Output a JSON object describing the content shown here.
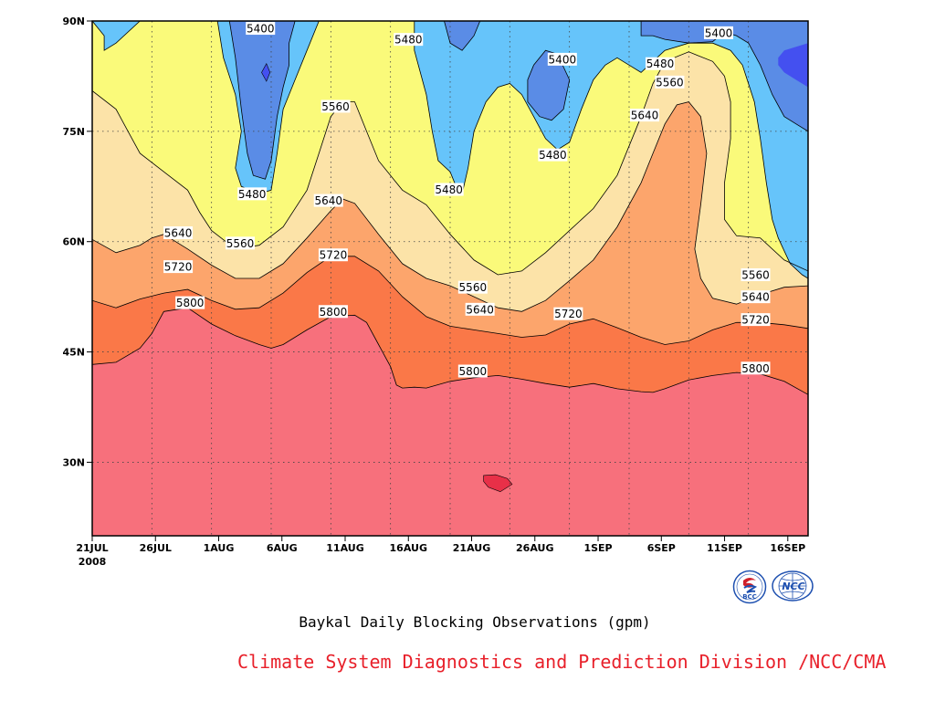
{
  "chart_data": {
    "type": "contour",
    "title": "Baykal Daily Blocking Observations (gpm)",
    "x_axis": {
      "ticks": [
        "21JUL",
        "26JUL",
        "1AUG",
        "6AUG",
        "11AUG",
        "16AUG",
        "21AUG",
        "26AUG",
        "1SEP",
        "6SEP",
        "11SEP",
        "16SEP"
      ],
      "year_label": "2008",
      "range_days": [
        0,
        60
      ]
    },
    "y_axis": {
      "ticks": [
        "30N",
        "45N",
        "60N",
        "75N",
        "90N"
      ],
      "range": [
        20,
        90
      ]
    },
    "grid": true,
    "levels": [
      5400,
      5480,
      5560,
      5640,
      5720,
      5800
    ],
    "fill_colors": {
      "below_5400": "#5a8ce6",
      "b5400_5480": "#66c4fa",
      "b5480_5560": "#fafa7a",
      "b5560_5640": "#fce3a8",
      "b5640_5720": "#fca56c",
      "b5720_5800": "#fa7848",
      "above_5800": "#f7707c",
      "extreme_low": "#4450f0",
      "extreme_high": "#e83048"
    },
    "contours": [
      {
        "level": 5800,
        "points": [
          [
            0,
            43.3
          ],
          [
            2,
            43.6
          ],
          [
            4,
            45.5
          ],
          [
            5,
            47.5
          ],
          [
            6,
            50.5
          ],
          [
            8,
            51
          ],
          [
            10,
            48.8
          ],
          [
            12,
            47.2
          ],
          [
            14,
            46
          ],
          [
            15,
            45.5
          ],
          [
            16,
            46
          ],
          [
            18,
            48
          ],
          [
            20,
            49.8
          ],
          [
            22,
            50
          ],
          [
            23,
            49
          ],
          [
            24,
            46
          ],
          [
            25,
            43
          ],
          [
            25.5,
            40.5
          ],
          [
            26,
            40.1
          ],
          [
            27,
            40.2
          ],
          [
            28,
            40.1
          ],
          [
            30,
            41
          ],
          [
            32,
            41.5
          ],
          [
            34,
            41.8
          ],
          [
            36,
            41.3
          ],
          [
            38,
            40.7
          ],
          [
            40,
            40.2
          ],
          [
            42,
            40.7
          ],
          [
            44,
            40
          ],
          [
            46,
            39.6
          ],
          [
            47,
            39.5
          ],
          [
            48,
            40
          ],
          [
            50,
            41.2
          ],
          [
            52,
            41.8
          ],
          [
            54,
            42.2
          ],
          [
            56,
            42
          ],
          [
            58,
            41
          ],
          [
            60,
            39.2
          ]
        ]
      },
      {
        "level": 5720,
        "points": [
          [
            0,
            52
          ],
          [
            2,
            51
          ],
          [
            4,
            52.2
          ],
          [
            6,
            53
          ],
          [
            8,
            53.5
          ],
          [
            10,
            52
          ],
          [
            12,
            50.8
          ],
          [
            14,
            51
          ],
          [
            16,
            53
          ],
          [
            18,
            55.8
          ],
          [
            20,
            58
          ],
          [
            22,
            58
          ],
          [
            24,
            56
          ],
          [
            26,
            52.5
          ],
          [
            28,
            49.8
          ],
          [
            30,
            48.5
          ],
          [
            32,
            48
          ],
          [
            34,
            47.5
          ],
          [
            36,
            47
          ],
          [
            38,
            47.3
          ],
          [
            40,
            48.8
          ],
          [
            42,
            49.5
          ],
          [
            44,
            48.3
          ],
          [
            46,
            47
          ],
          [
            48,
            46
          ],
          [
            50,
            46.5
          ],
          [
            52,
            48
          ],
          [
            54,
            49
          ],
          [
            56,
            49
          ],
          [
            58,
            48.7
          ],
          [
            60,
            48.2
          ]
        ]
      },
      {
        "level": 5640,
        "points": [
          [
            0,
            60.3
          ],
          [
            2,
            58.5
          ],
          [
            4,
            59.5
          ],
          [
            5,
            60.5
          ],
          [
            6,
            61
          ],
          [
            8,
            59
          ],
          [
            10,
            56.8
          ],
          [
            12,
            55
          ],
          [
            14,
            55
          ],
          [
            16,
            57
          ],
          [
            18,
            60.5
          ],
          [
            20,
            64.2
          ],
          [
            21,
            65.8
          ],
          [
            22,
            65.2
          ],
          [
            24,
            61
          ],
          [
            26,
            57
          ],
          [
            28,
            55
          ],
          [
            30,
            54
          ],
          [
            32,
            52.5
          ],
          [
            34,
            51
          ],
          [
            36,
            50.5
          ],
          [
            38,
            52
          ],
          [
            40,
            54.7
          ],
          [
            42,
            57.5
          ],
          [
            44,
            62
          ],
          [
            46,
            68
          ],
          [
            47,
            72
          ],
          [
            48,
            76
          ],
          [
            49,
            78.6
          ],
          [
            50,
            79
          ],
          [
            51,
            77
          ],
          [
            51.5,
            72
          ],
          [
            51,
            65
          ],
          [
            50.5,
            59
          ],
          [
            51,
            55
          ],
          [
            52,
            52.3
          ],
          [
            54,
            51.5
          ],
          [
            56,
            52.8
          ],
          [
            58,
            53.8
          ],
          [
            60,
            54
          ]
        ]
      },
      {
        "level": 5560,
        "points": [
          [
            0,
            80.5
          ],
          [
            2,
            78
          ],
          [
            3,
            75
          ],
          [
            4,
            72
          ],
          [
            6,
            69.5
          ],
          [
            8,
            67
          ],
          [
            9,
            64
          ],
          [
            10,
            61.5
          ],
          [
            12,
            59
          ],
          [
            14,
            59.5
          ],
          [
            16,
            62
          ],
          [
            18,
            67
          ],
          [
            19,
            72
          ],
          [
            20,
            77
          ],
          [
            21,
            79
          ],
          [
            22,
            79
          ],
          [
            23,
            75
          ],
          [
            24,
            71
          ],
          [
            26,
            67
          ],
          [
            28,
            65
          ],
          [
            30,
            61
          ],
          [
            32,
            57.5
          ],
          [
            34,
            55.5
          ],
          [
            36,
            56
          ],
          [
            38,
            58.5
          ],
          [
            40,
            61.5
          ],
          [
            42,
            64.5
          ],
          [
            44,
            69
          ],
          [
            46,
            77
          ],
          [
            47,
            81.5
          ],
          [
            48,
            84.5
          ],
          [
            50,
            85.8
          ],
          [
            52,
            84.5
          ],
          [
            53,
            82.5
          ],
          [
            53.5,
            79
          ],
          [
            53.5,
            74
          ],
          [
            53,
            68
          ],
          [
            53,
            63
          ],
          [
            54,
            60.8
          ],
          [
            56,
            60.5
          ],
          [
            58,
            57.5
          ],
          [
            60,
            56
          ]
        ]
      },
      {
        "level": 5480,
        "points": [
          [
            0,
            90
          ],
          [
            1,
            88
          ],
          [
            1,
            86
          ],
          [
            2,
            87
          ],
          [
            4,
            90
          ]
        ]
      },
      {
        "level": 5480,
        "points": [
          [
            10.5,
            90
          ],
          [
            11,
            85
          ],
          [
            12,
            80
          ],
          [
            12.5,
            75
          ],
          [
            12,
            70
          ],
          [
            12.5,
            67.5
          ],
          [
            14,
            66.5
          ],
          [
            15,
            67
          ],
          [
            15.5,
            72
          ],
          [
            16,
            78
          ],
          [
            17,
            82
          ],
          [
            18,
            86
          ],
          [
            19,
            90
          ]
        ]
      },
      {
        "level": 5480,
        "points": [
          [
            27,
            90
          ],
          [
            27,
            86
          ],
          [
            28,
            80
          ],
          [
            28.5,
            75
          ],
          [
            29,
            71
          ],
          [
            30,
            69.5
          ],
          [
            30.5,
            67.5
          ],
          [
            31,
            66.5
          ],
          [
            31.5,
            70
          ],
          [
            32,
            75
          ],
          [
            33,
            79
          ],
          [
            34,
            81
          ],
          [
            35,
            81.5
          ],
          [
            36,
            80
          ],
          [
            37,
            77
          ],
          [
            38,
            74
          ],
          [
            39,
            72.5
          ],
          [
            40,
            73.5
          ],
          [
            41,
            78
          ],
          [
            42,
            82
          ],
          [
            43,
            84
          ],
          [
            44,
            85
          ],
          [
            45,
            84
          ],
          [
            46,
            83
          ],
          [
            47,
            84.5
          ],
          [
            48,
            86
          ],
          [
            50,
            87
          ],
          [
            52,
            87
          ],
          [
            53.5,
            86
          ],
          [
            54.5,
            84
          ],
          [
            55.5,
            79
          ],
          [
            56,
            74
          ],
          [
            56.5,
            68
          ],
          [
            57,
            63
          ],
          [
            57.5,
            60.5
          ],
          [
            58.5,
            57
          ],
          [
            59.5,
            55.5
          ],
          [
            60,
            55
          ]
        ]
      },
      {
        "level": 5400,
        "points": [
          [
            11.5,
            90
          ],
          [
            12,
            85
          ],
          [
            12.5,
            78
          ],
          [
            13,
            72
          ],
          [
            13.5,
            69
          ],
          [
            14.5,
            68.5
          ],
          [
            15,
            71
          ],
          [
            15.5,
            77
          ],
          [
            16,
            81
          ],
          [
            16.5,
            84
          ],
          [
            16.5,
            87
          ],
          [
            17,
            90
          ]
        ]
      },
      {
        "level": 5400,
        "points": [
          [
            29.5,
            90
          ],
          [
            30,
            87
          ],
          [
            31,
            86
          ],
          [
            31.5,
            87
          ],
          [
            32,
            88
          ],
          [
            32.5,
            90
          ]
        ]
      },
      {
        "level": 5400,
        "points": [
          [
            37,
            84
          ],
          [
            38,
            86
          ],
          [
            39,
            85.5
          ],
          [
            40,
            82
          ],
          [
            39.5,
            78
          ],
          [
            38.5,
            76.5
          ],
          [
            37.5,
            77
          ],
          [
            36.5,
            79
          ],
          [
            36.5,
            82
          ],
          [
            37,
            84
          ]
        ]
      },
      {
        "level": 5400,
        "points": [
          [
            46,
            90
          ],
          [
            46,
            88
          ],
          [
            47,
            88
          ],
          [
            48,
            87.5
          ],
          [
            50,
            87
          ],
          [
            52,
            87.2
          ],
          [
            53,
            88.5
          ],
          [
            54,
            88
          ],
          [
            55,
            87
          ],
          [
            56,
            84
          ],
          [
            57,
            80
          ],
          [
            58,
            77
          ],
          [
            59,
            76
          ],
          [
            60,
            75
          ]
        ]
      }
    ],
    "contour_labels": [
      {
        "text": "5400",
        "x": 14.1,
        "y": 89
      },
      {
        "text": "5480",
        "x": 26.5,
        "y": 87.5
      },
      {
        "text": "5400",
        "x": 39.4,
        "y": 84.8
      },
      {
        "text": "5400",
        "x": 52.5,
        "y": 88.4
      },
      {
        "text": "5480",
        "x": 47.6,
        "y": 84.2
      },
      {
        "text": "5560",
        "x": 48.4,
        "y": 81.7
      },
      {
        "text": "5640",
        "x": 46.3,
        "y": 77.2
      },
      {
        "text": "5560",
        "x": 20.4,
        "y": 78.4
      },
      {
        "text": "5480",
        "x": 38.6,
        "y": 71.8
      },
      {
        "text": "5480",
        "x": 13.4,
        "y": 66.5
      },
      {
        "text": "5480",
        "x": 29.9,
        "y": 67.1
      },
      {
        "text": "5640",
        "x": 19.8,
        "y": 65.6
      },
      {
        "text": "5640",
        "x": 7.2,
        "y": 61.2
      },
      {
        "text": "5560",
        "x": 12.4,
        "y": 59.8
      },
      {
        "text": "5720",
        "x": 20.2,
        "y": 58.2
      },
      {
        "text": "5720",
        "x": 7.2,
        "y": 56.6
      },
      {
        "text": "5560",
        "x": 55.6,
        "y": 55.5
      },
      {
        "text": "5560",
        "x": 31.9,
        "y": 53.8
      },
      {
        "text": "5640",
        "x": 55.6,
        "y": 52.5
      },
      {
        "text": "5640",
        "x": 32.5,
        "y": 50.8
      },
      {
        "text": "5800",
        "x": 8.2,
        "y": 51.7
      },
      {
        "text": "5800",
        "x": 20.2,
        "y": 50.5
      },
      {
        "text": "5720",
        "x": 39.9,
        "y": 50.2
      },
      {
        "text": "5720",
        "x": 55.6,
        "y": 49.4
      },
      {
        "text": "5800",
        "x": 31.9,
        "y": 42.4
      },
      {
        "text": "5800",
        "x": 55.6,
        "y": 42.8
      }
    ]
  },
  "credit": "Climate System Diagnostics and Prediction Division /NCC/CMA",
  "logos": [
    {
      "text": "BCC",
      "color": "#1e50b0"
    },
    {
      "text": "NCC",
      "color": "#1e50b0"
    }
  ]
}
